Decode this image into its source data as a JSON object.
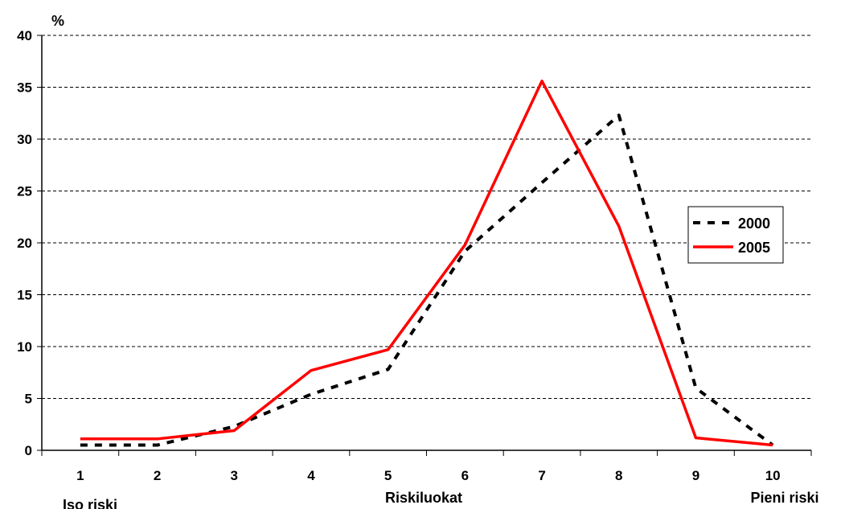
{
  "chart_data": {
    "type": "line",
    "title": "",
    "ylabel": "%",
    "xlabel": "Riskiluokat",
    "x_end_labels": {
      "left": "Iso riski",
      "right": "Pieni riski"
    },
    "categories": [
      "1",
      "2",
      "3",
      "4",
      "5",
      "6",
      "7",
      "8",
      "9",
      "10"
    ],
    "ylim": [
      0,
      40
    ],
    "yticks": [
      "0",
      "5",
      "10",
      "15",
      "20",
      "25",
      "30",
      "35",
      "40"
    ],
    "grid": "horizontal dashed",
    "legend_position": "right",
    "series": [
      {
        "name": "2000",
        "style": "dotted",
        "color": "#000000",
        "values": [
          0.5,
          0.5,
          2.3,
          5.4,
          7.8,
          19.2,
          25.8,
          32.3,
          6.0,
          0.5
        ]
      },
      {
        "name": "2005",
        "style": "solid",
        "color": "#ff0000",
        "values": [
          1.1,
          1.1,
          1.9,
          7.7,
          9.7,
          19.8,
          35.6,
          21.6,
          1.2,
          0.5
        ]
      }
    ]
  }
}
